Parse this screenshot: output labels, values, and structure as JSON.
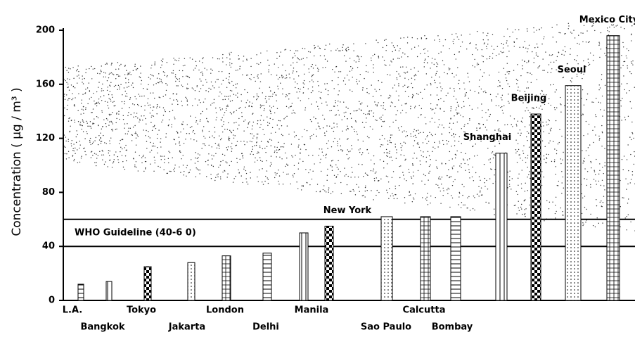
{
  "chart_data": {
    "type": "bar",
    "y_label": "Concentration ( µg / m³ )",
    "categories": [
      "L.A.",
      "Bangkok",
      "Tokyo",
      "Jakarta",
      "London",
      "Delhi",
      "Manila",
      "New York",
      "Sao Paulo",
      "Calcutta",
      "Bombay",
      "Shanghai",
      "Beijing",
      "Seoul",
      "Mexico City"
    ],
    "values": [
      12,
      14,
      25,
      28,
      33,
      35,
      50,
      55,
      62,
      62,
      62,
      109,
      138,
      159,
      196
    ],
    "color": "#000000",
    "ylim": [
      0,
      210
    ],
    "yticks": [
      0,
      40,
      80,
      120,
      160,
      200
    ],
    "reference_lines": {
      "label": "WHO Guideline (40-6 0)",
      "values": [
        40,
        60
      ]
    }
  }
}
